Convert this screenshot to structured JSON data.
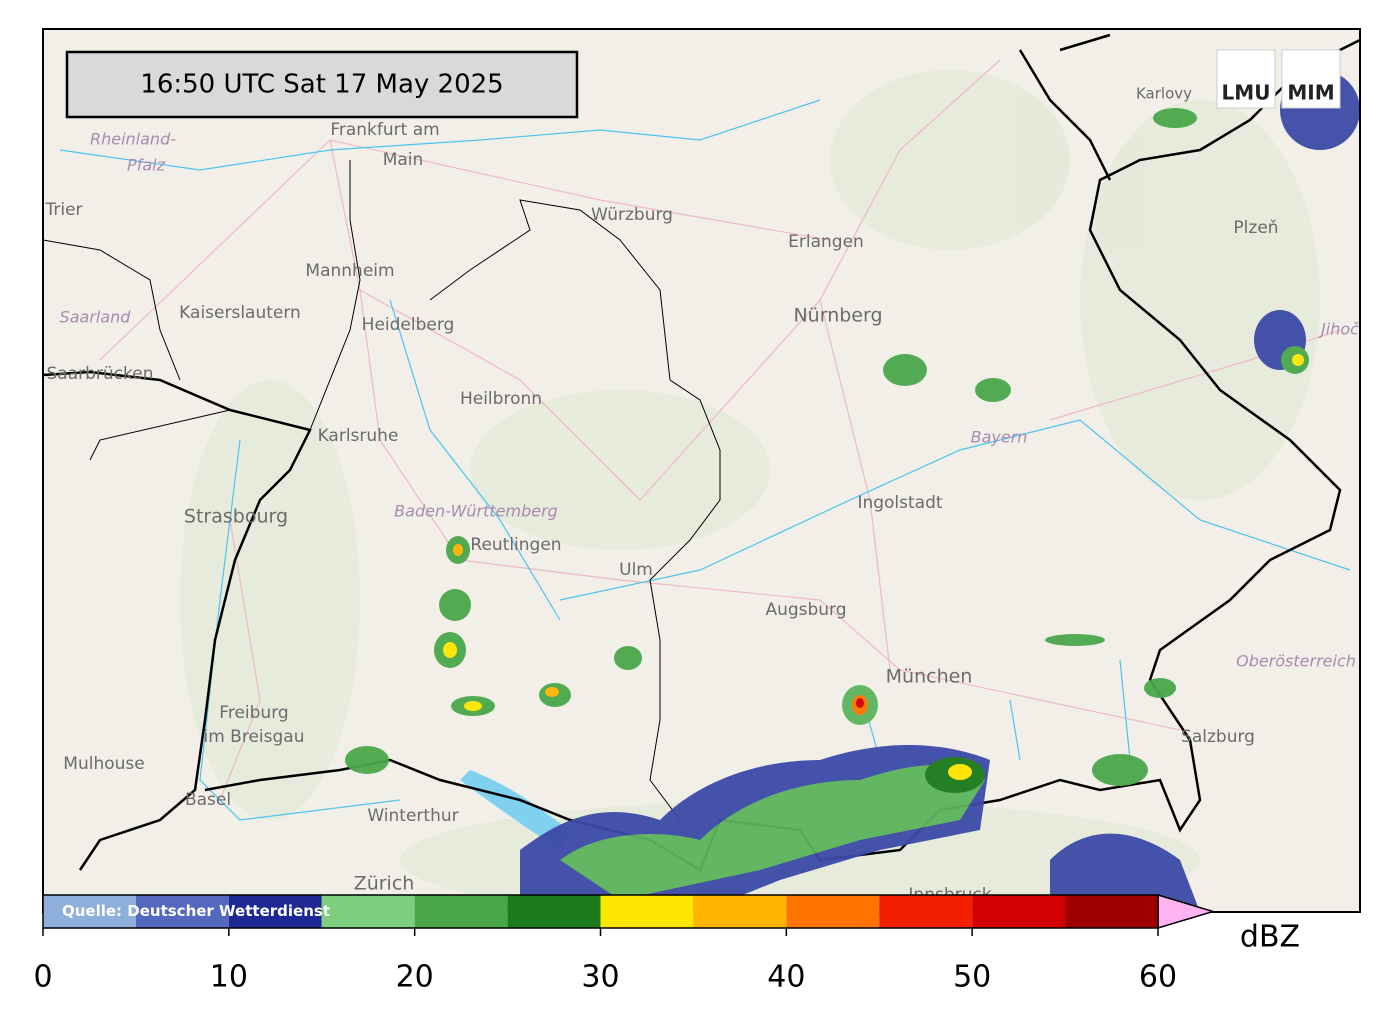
{
  "timestamp": "16:50 UTC  Sat 17 May 2025",
  "logo": [
    "LMU",
    "MIM"
  ],
  "source": "Quelle: Deutscher Wetterdienst",
  "places": [
    "Frankfurt am",
    "Main",
    "Würzburg",
    "Erlangen",
    "Nürnberg",
    "Mannheim",
    "Kaiserslautern",
    "Heidelberg",
    "Saarland",
    "Rheinland-",
    "Pfalz",
    "Trier",
    "Saarbrücken",
    "Heilbronn",
    "Karlsruhe",
    "Strasbourg",
    "Baden-Württemberg",
    "Reutlingen",
    "Ulm",
    "Augsburg",
    "Ingolstadt",
    "Bayern",
    "München",
    "Freiburg",
    "im Breisgau",
    "Mulhouse",
    "Basel",
    "Winterthur",
    "Zürich",
    "Innsbruck",
    "Salzburg",
    "Oberösterreich",
    "Plzeň",
    "Karlovy",
    "Jihoč"
  ],
  "colorbar": {
    "unit": "dBZ",
    "lim": [
      0,
      60
    ],
    "ticks": [
      0,
      10,
      20,
      30,
      40,
      50,
      60
    ],
    "bounds": [
      0,
      5,
      10,
      15,
      20,
      25,
      30,
      35,
      40,
      45,
      50,
      55,
      60
    ],
    "colors": [
      "#8eaedb",
      "#5468bf",
      "#1e2893",
      "#7dcf7d",
      "#49a749",
      "#1b7a1b",
      "#ffe600",
      "#ffb400",
      "#ff7400",
      "#f22000",
      "#d20000",
      "#9e0000"
    ],
    "extend_color": "#ffb3f2"
  }
}
